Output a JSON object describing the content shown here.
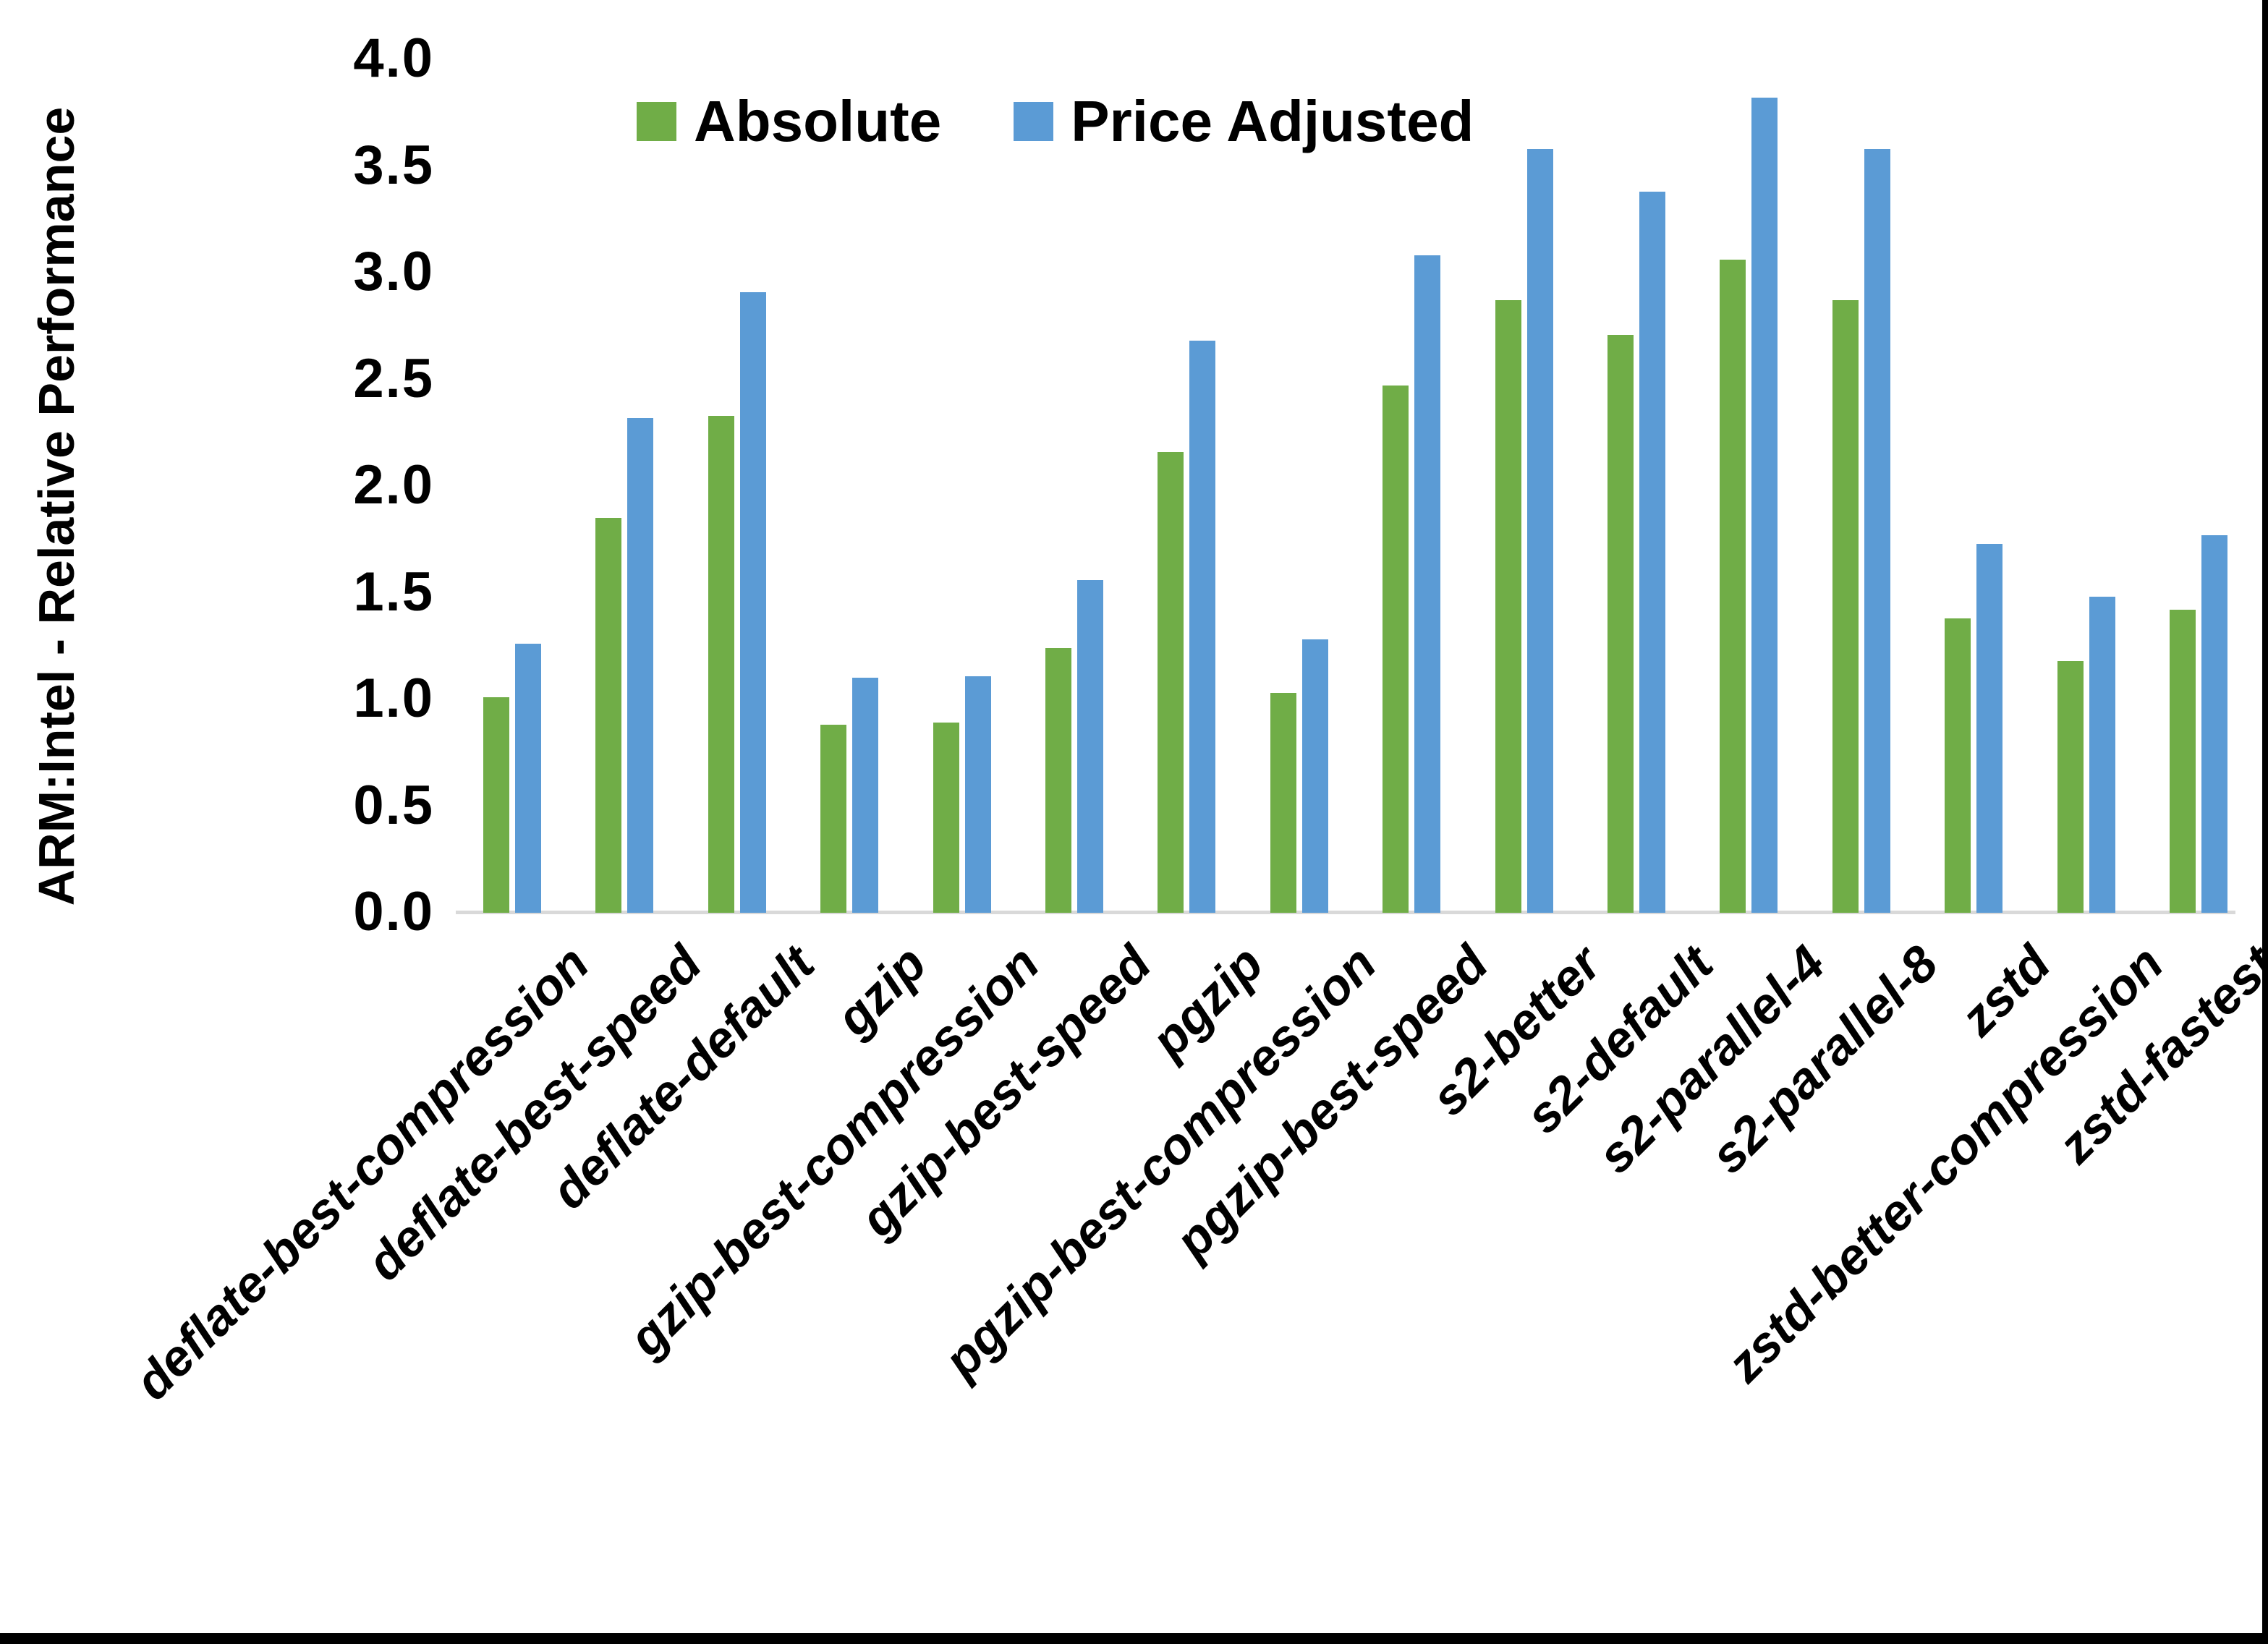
{
  "chart_data": {
    "type": "bar",
    "title": "",
    "ylabel": "ARM:Intel - Relative Performance",
    "xlabel": "",
    "ylim": [
      0.0,
      4.0
    ],
    "ytick_step": 0.5,
    "yticks": [
      "4.0",
      "3.5",
      "3.0",
      "2.5",
      "2.0",
      "1.5",
      "1.0",
      "0.5",
      "0.0"
    ],
    "grid": false,
    "legend_position": "top-center",
    "categories": [
      "deflate-best-compression",
      "deflate-best-speed",
      "deflate-default",
      "gzip",
      "gzip-best-compression",
      "gzip-best-speed",
      "pgzip",
      "pgzip-best-compression",
      "pgzip-best-speed",
      "s2-better",
      "s2-default",
      "s2-parallel-4",
      "s2-parallel-8",
      "zstd",
      "zstd-better-compression",
      "zstd-fastest"
    ],
    "series": [
      {
        "name": "Absolute",
        "color": "#70AD47",
        "values": [
          1.01,
          1.85,
          2.33,
          0.88,
          0.89,
          1.24,
          2.16,
          1.03,
          2.47,
          2.87,
          2.71,
          3.06,
          2.87,
          1.38,
          1.18,
          1.42
        ]
      },
      {
        "name": "Price Adjusted",
        "color": "#5B9BD5",
        "values": [
          1.26,
          2.32,
          2.91,
          1.1,
          1.11,
          1.56,
          2.68,
          1.28,
          3.08,
          3.58,
          3.38,
          3.82,
          3.58,
          1.73,
          1.48,
          1.77
        ]
      }
    ],
    "colors": {
      "axis_line": "#D9D9D9",
      "text": "#000000",
      "frame_border": "#000000",
      "background": "#FFFFFF"
    }
  }
}
